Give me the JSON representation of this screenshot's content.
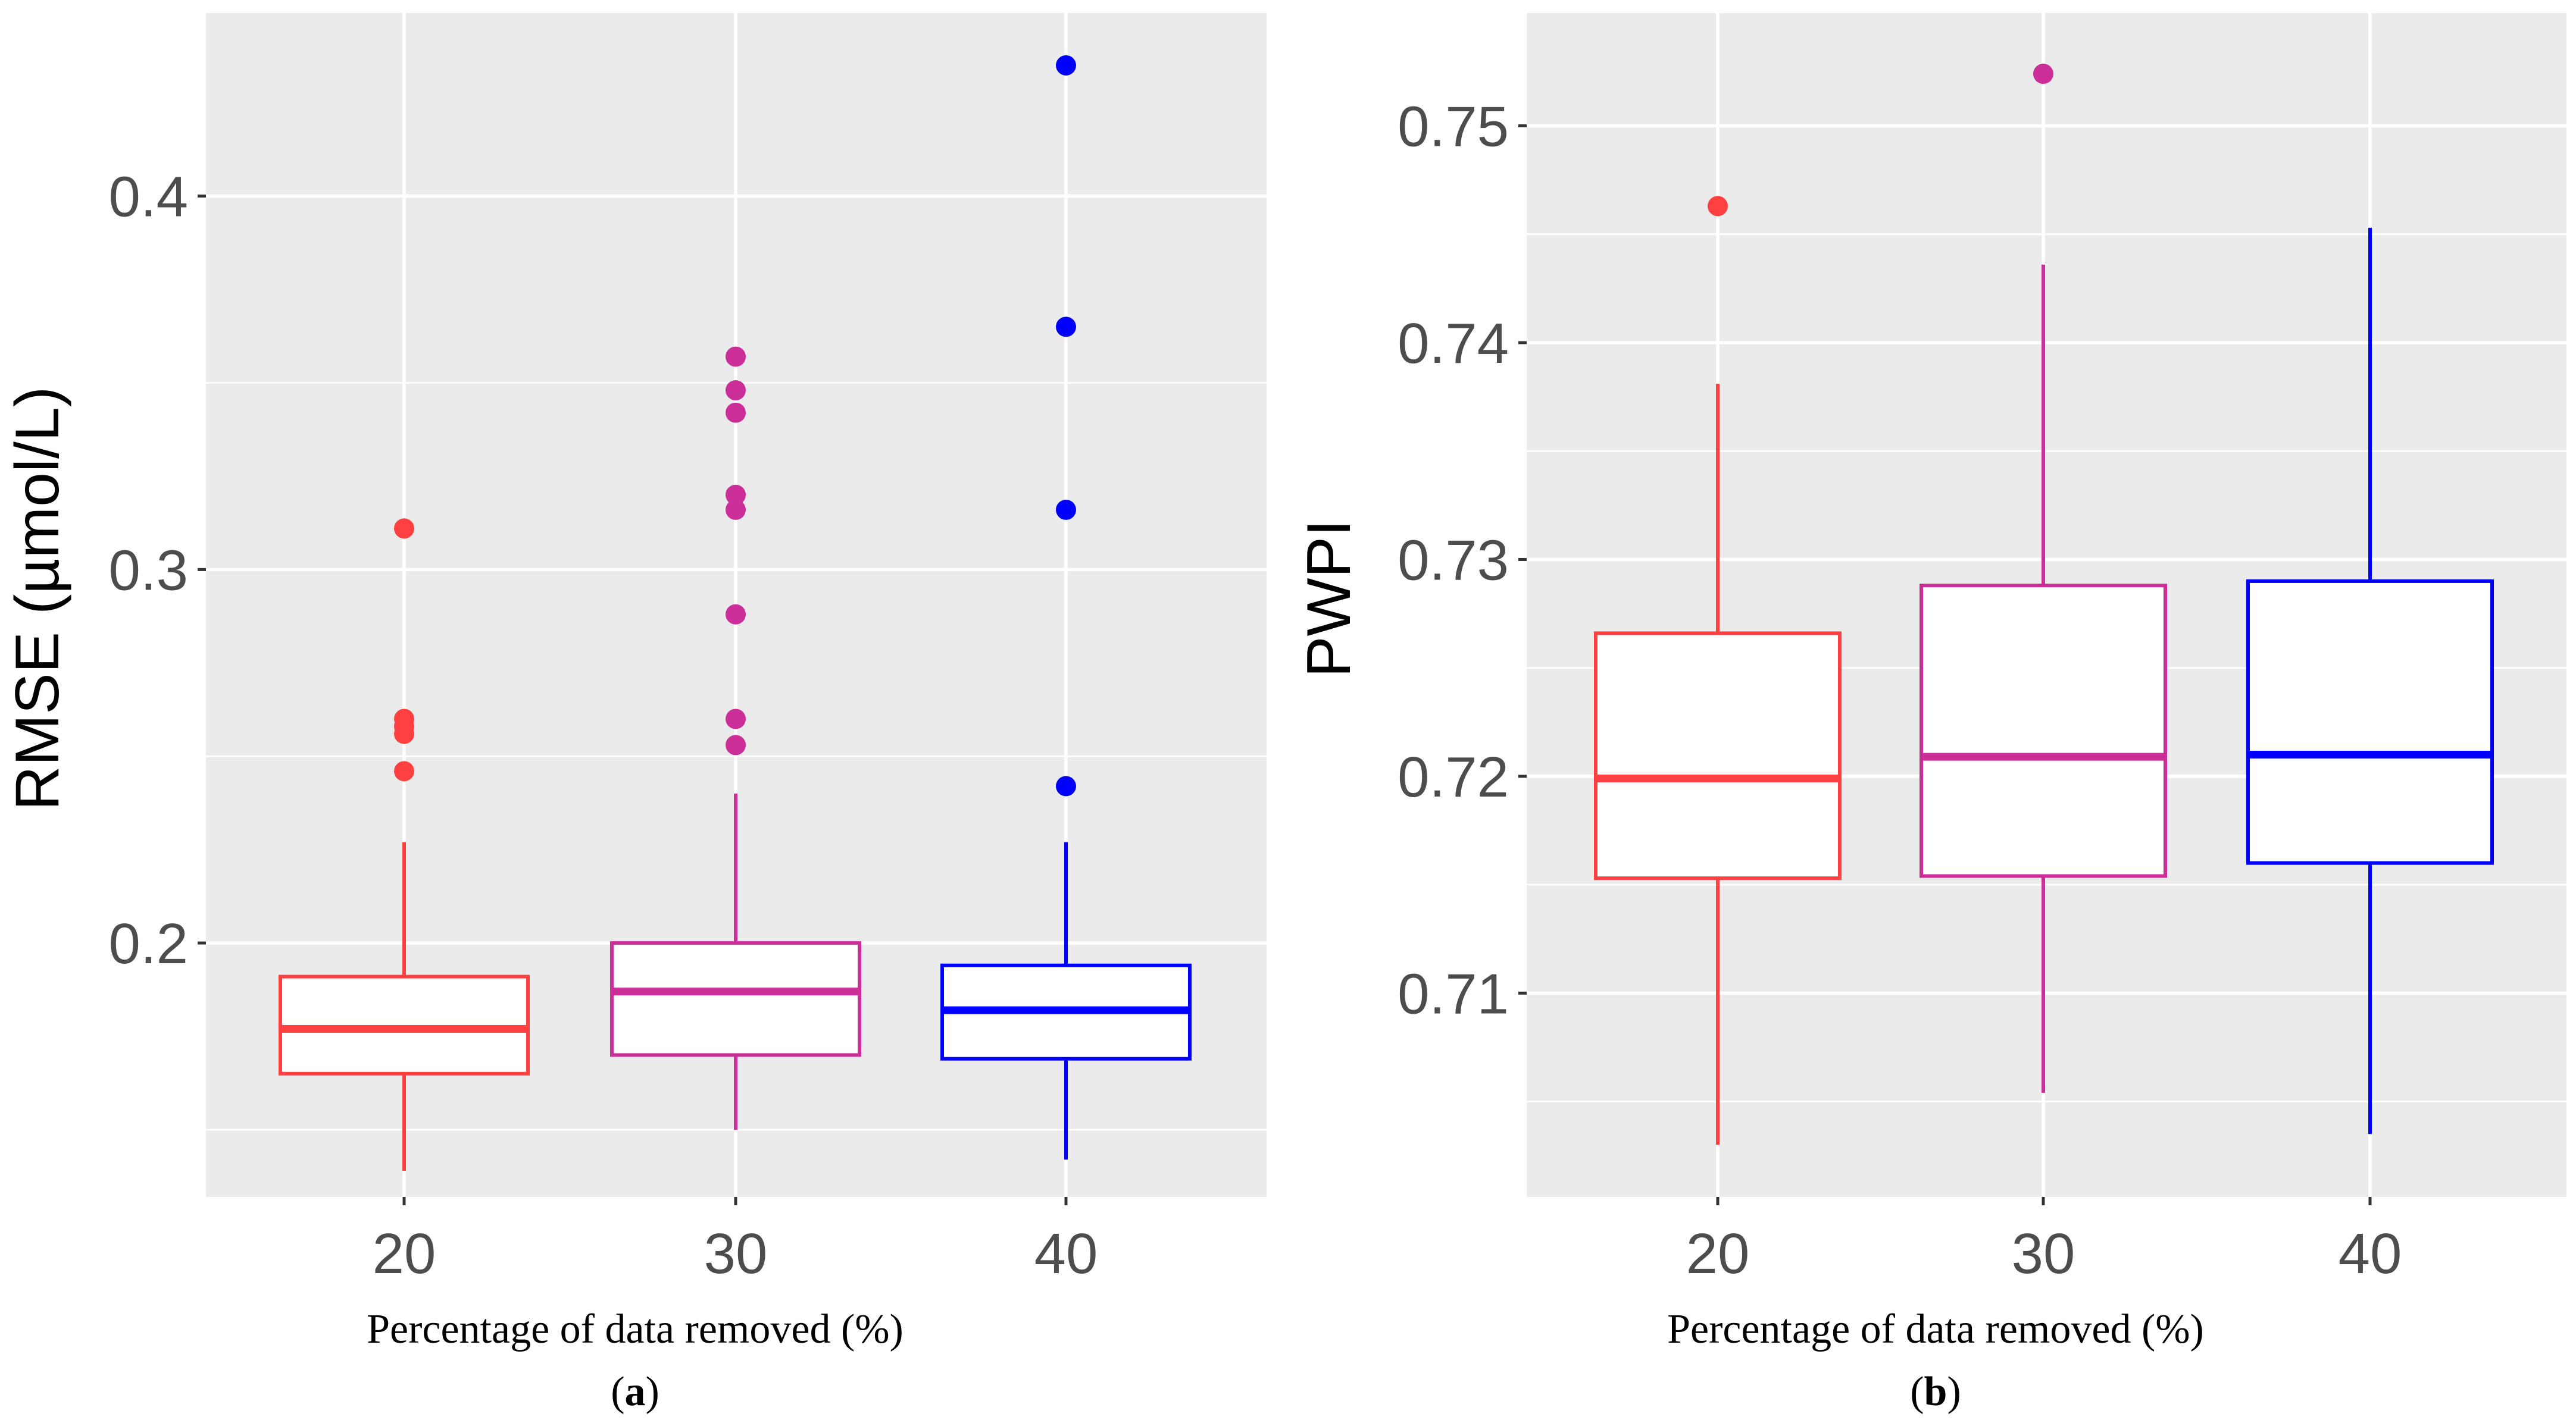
{
  "figure": {
    "caption_open": "(",
    "caption_close": ")"
  },
  "chart_data": [
    {
      "type": "boxplot",
      "panel_label": "a",
      "xlabel": "Percentage of data removed (%)",
      "ylabel": "RMSE (µmol/L)",
      "categories": [
        "20",
        "30",
        "40"
      ],
      "colors": [
        "#ff4040",
        "#cc2e98",
        "#0000ff"
      ],
      "ylim": [
        0.132,
        0.449
      ],
      "yticks": [
        0.2,
        0.3,
        0.4
      ],
      "ytick_labels": [
        "0.2",
        "0.3",
        "0.4"
      ],
      "yminor": [
        0.15,
        0.25,
        0.35
      ],
      "boxes": [
        {
          "category": "20",
          "lower_whisker": 0.139,
          "q1": 0.165,
          "median": 0.177,
          "q3": 0.191,
          "upper_whisker": 0.227,
          "outliers": [
            0.246,
            0.256,
            0.258,
            0.26,
            0.311
          ]
        },
        {
          "category": "30",
          "lower_whisker": 0.15,
          "q1": 0.17,
          "median": 0.187,
          "q3": 0.2,
          "upper_whisker": 0.24,
          "outliers": [
            0.253,
            0.26,
            0.288,
            0.316,
            0.32,
            0.342,
            0.348,
            0.357
          ]
        },
        {
          "category": "40",
          "lower_whisker": 0.142,
          "q1": 0.169,
          "median": 0.182,
          "q3": 0.194,
          "upper_whisker": 0.227,
          "outliers": [
            0.242,
            0.316,
            0.365,
            0.435
          ]
        }
      ]
    },
    {
      "type": "boxplot",
      "panel_label": "b",
      "xlabel": "Percentage of data removed (%)",
      "ylabel": "PWPI",
      "categories": [
        "20",
        "30",
        "40"
      ],
      "colors": [
        "#ff4040",
        "#cc2e98",
        "#0000ff"
      ],
      "ylim": [
        0.7006,
        0.7552
      ],
      "yticks": [
        0.71,
        0.72,
        0.73,
        0.74,
        0.75
      ],
      "ytick_labels": [
        "0.71",
        "0.72",
        "0.73",
        "0.74",
        "0.75"
      ],
      "yminor": [
        0.705,
        0.715,
        0.725,
        0.735,
        0.745
      ],
      "boxes": [
        {
          "category": "20",
          "lower_whisker": 0.703,
          "q1": 0.7153,
          "median": 0.7199,
          "q3": 0.7266,
          "upper_whisker": 0.7381,
          "outliers": [
            0.7463
          ]
        },
        {
          "category": "30",
          "lower_whisker": 0.7054,
          "q1": 0.7154,
          "median": 0.7209,
          "q3": 0.7288,
          "upper_whisker": 0.7436,
          "outliers": [
            0.7524
          ]
        },
        {
          "category": "40",
          "lower_whisker": 0.7035,
          "q1": 0.716,
          "median": 0.721,
          "q3": 0.729,
          "upper_whisker": 0.7453,
          "outliers": []
        }
      ]
    }
  ]
}
